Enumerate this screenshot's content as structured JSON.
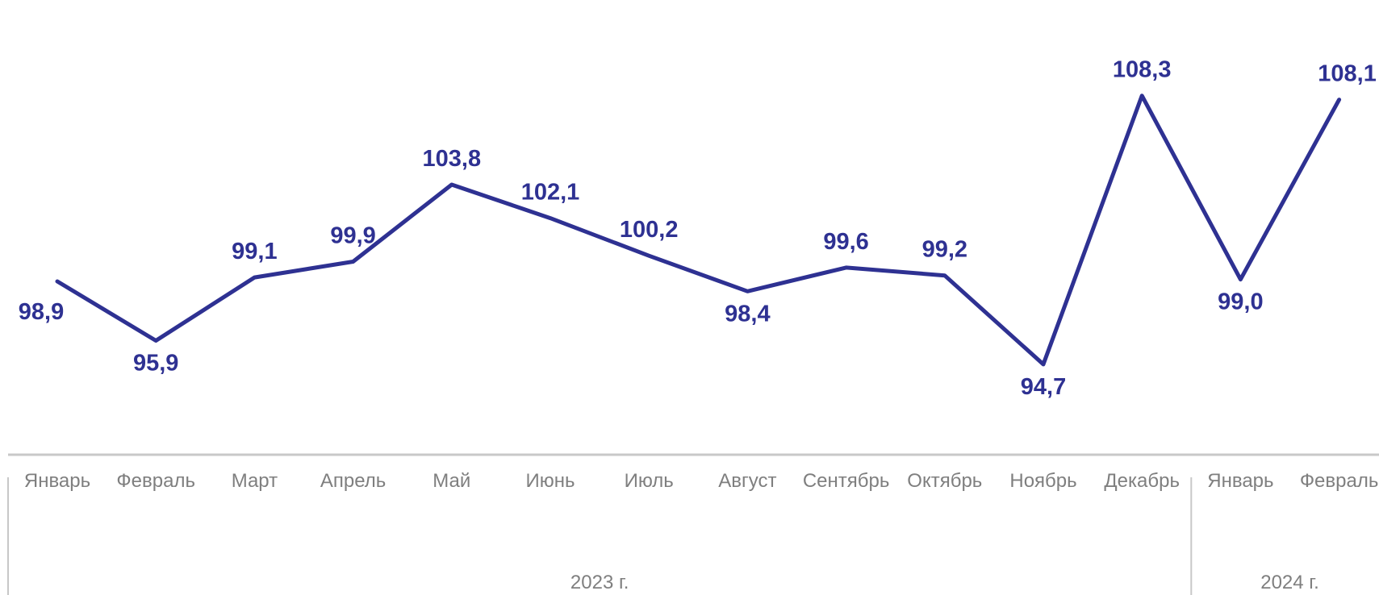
{
  "chart_data": {
    "type": "line",
    "title": "",
    "xlabel": "",
    "ylabel": "",
    "grid": false,
    "legend": "none",
    "colors": {
      "line": "#2e3192",
      "label": "#2e3192",
      "axis_text": "#7f7f7f",
      "axis_line": "#c8c8c8"
    },
    "categories": [
      "Январь",
      "Февраль",
      "Март",
      "Апрель",
      "Май",
      "Июнь",
      "Июль",
      "Август",
      "Сентябрь",
      "Октябрь",
      "Ноябрь",
      "Декабрь",
      "Январь",
      "Февраль"
    ],
    "value_labels": [
      "98,9",
      "95,9",
      "99,1",
      "99,9",
      "103,8",
      "102,1",
      "100,2",
      "98,4",
      "99,6",
      "99,2",
      "94,7",
      "108,3",
      "99,0",
      "108,1"
    ],
    "series": [
      {
        "values": [
          98.9,
          95.9,
          99.1,
          99.9,
          103.8,
          102.1,
          100.2,
          98.4,
          99.6,
          99.2,
          94.7,
          108.3,
          99.0,
          108.1
        ]
      }
    ],
    "groups": [
      {
        "label": "2023 г.",
        "count": 12
      },
      {
        "label": "2024 г.",
        "count": 2
      }
    ]
  }
}
